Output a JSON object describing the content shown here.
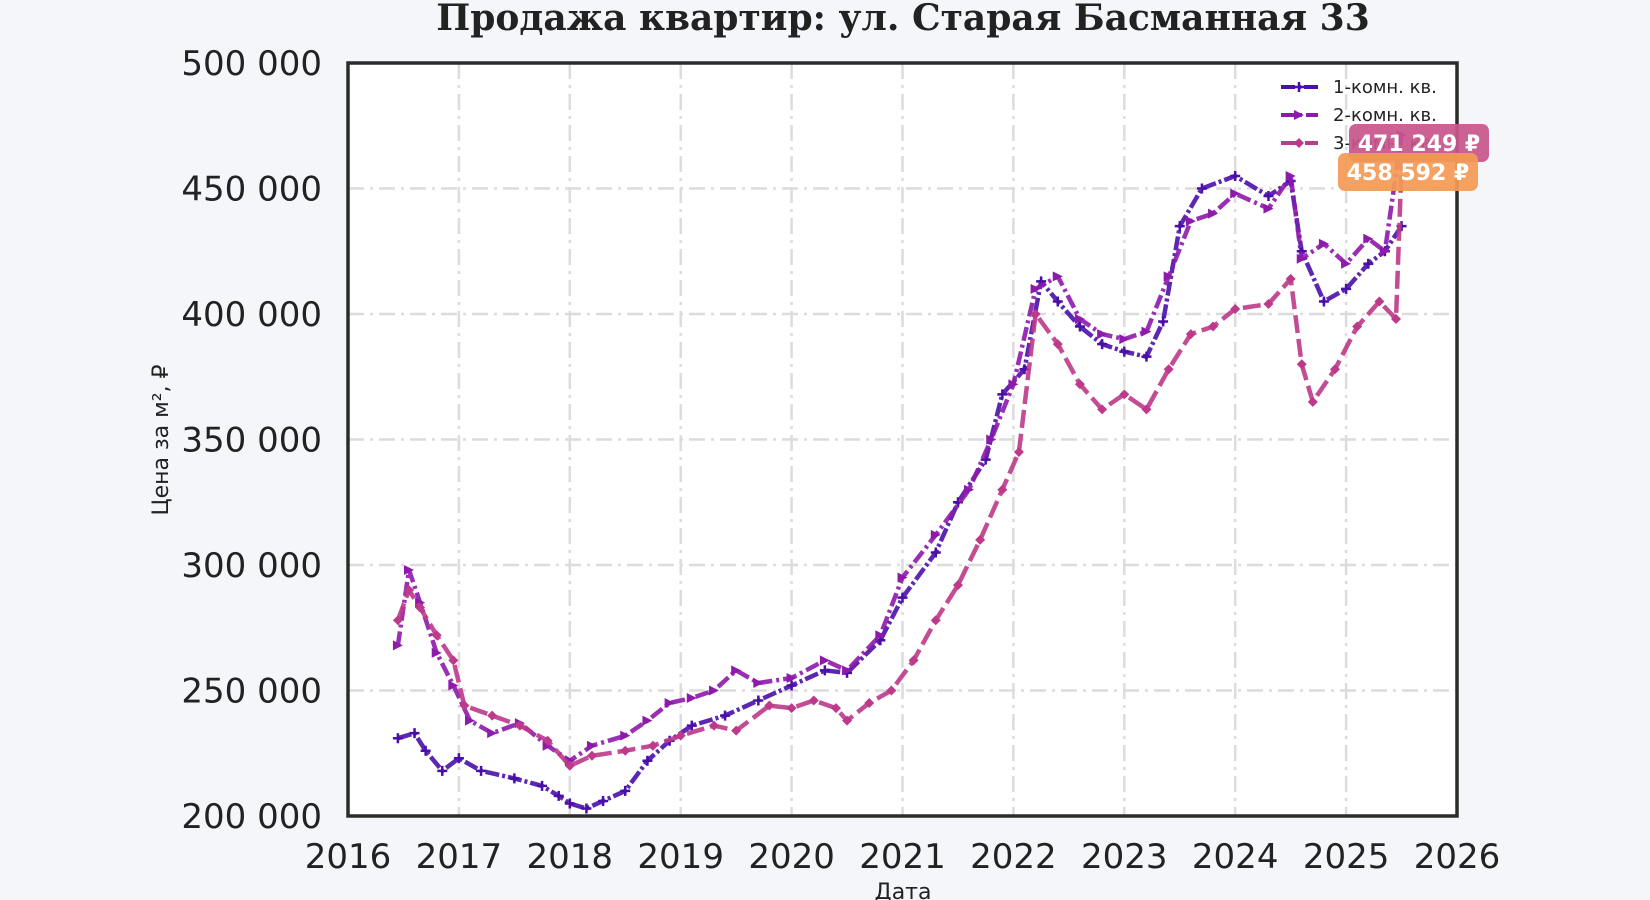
{
  "chart_data": {
    "type": "line",
    "title": "Продажа квартир: ул. Старая Басманная 33",
    "xlabel": "Дата",
    "ylabel": "Цена за м², ₽",
    "xlim": [
      2016,
      2026
    ],
    "ylim": [
      200000,
      500000
    ],
    "x_ticks": [
      2016,
      2017,
      2018,
      2019,
      2020,
      2021,
      2022,
      2023,
      2024,
      2025,
      2026
    ],
    "x_tick_labels": [
      "2016",
      "2017",
      "2018",
      "2019",
      "2020",
      "2021",
      "2022",
      "2023",
      "2024",
      "2025",
      "2026"
    ],
    "y_ticks": [
      200000,
      250000,
      300000,
      350000,
      400000,
      450000,
      500000
    ],
    "y_tick_labels": [
      "200 000",
      "250 000",
      "300 000",
      "350 000",
      "400 000",
      "450 000",
      "500 000"
    ],
    "grid": true,
    "legend_position": "top-right",
    "series": [
      {
        "name": "1-комн. кв.",
        "color": "#4a0fa8",
        "marker": "plus",
        "dash": "14 3 3 3",
        "last_value_label": "",
        "x": [
          2016.45,
          2016.6,
          2016.7,
          2016.85,
          2017.0,
          2017.2,
          2017.5,
          2017.75,
          2017.9,
          2018.0,
          2018.15,
          2018.3,
          2018.5,
          2018.7,
          2018.9,
          2019.1,
          2019.4,
          2019.7,
          2020.0,
          2020.3,
          2020.5,
          2020.8,
          2021.0,
          2021.3,
          2021.5,
          2021.75,
          2021.9,
          2022.1,
          2022.25,
          2022.4,
          2022.6,
          2022.8,
          2023.0,
          2023.2,
          2023.35,
          2023.5,
          2023.7,
          2024.0,
          2024.3,
          2024.5,
          2024.6,
          2024.8,
          2025.0,
          2025.2,
          2025.35,
          2025.5
        ],
        "y": [
          231000,
          233000,
          226000,
          218000,
          223000,
          218000,
          215000,
          212000,
          208000,
          205000,
          203000,
          206000,
          210000,
          222000,
          230000,
          236000,
          240000,
          246000,
          252000,
          258000,
          257000,
          270000,
          287000,
          305000,
          325000,
          342000,
          368000,
          378000,
          413000,
          405000,
          395000,
          388000,
          385000,
          383000,
          397000,
          435000,
          450000,
          455000,
          447000,
          453000,
          425000,
          405000,
          410000,
          420000,
          425000,
          435000
        ]
      },
      {
        "name": "2-комн. кв.",
        "color": "#8e1aab",
        "marker": "triangle-right",
        "dash": "14 4 3 4",
        "last_value_label": "471 249 ₽",
        "x": [
          2016.45,
          2016.55,
          2016.65,
          2016.8,
          2016.95,
          2017.1,
          2017.3,
          2017.55,
          2017.8,
          2018.0,
          2018.2,
          2018.5,
          2018.7,
          2018.9,
          2019.1,
          2019.3,
          2019.5,
          2019.7,
          2020.0,
          2020.3,
          2020.5,
          2020.8,
          2021.0,
          2021.3,
          2021.6,
          2021.8,
          2022.0,
          2022.2,
          2022.4,
          2022.6,
          2022.8,
          2023.0,
          2023.2,
          2023.4,
          2023.6,
          2023.8,
          2024.0,
          2024.3,
          2024.5,
          2024.6,
          2024.8,
          2025.0,
          2025.2,
          2025.35,
          2025.5
        ],
        "y": [
          268000,
          298000,
          285000,
          265000,
          252000,
          238000,
          233000,
          237000,
          228000,
          222000,
          228000,
          232000,
          238000,
          245000,
          247000,
          250000,
          258000,
          253000,
          255000,
          262000,
          258000,
          272000,
          295000,
          312000,
          330000,
          350000,
          372000,
          410000,
          415000,
          398000,
          392000,
          390000,
          393000,
          415000,
          437000,
          440000,
          448000,
          442000,
          455000,
          422000,
          428000,
          420000,
          430000,
          425000,
          471249
        ]
      },
      {
        "name": "3-комн. кв.",
        "color": "#bd3a8a",
        "marker": "diamond",
        "dash": "18 6",
        "last_value_label": "458 592 ₽",
        "x": [
          2016.45,
          2016.55,
          2016.65,
          2016.8,
          2016.95,
          2017.05,
          2017.3,
          2017.55,
          2017.8,
          2018.0,
          2018.2,
          2018.5,
          2018.75,
          2019.0,
          2019.3,
          2019.5,
          2019.8,
          2020.0,
          2020.2,
          2020.4,
          2020.5,
          2020.7,
          2020.9,
          2021.1,
          2021.3,
          2021.5,
          2021.7,
          2021.9,
          2022.05,
          2022.2,
          2022.4,
          2022.6,
          2022.8,
          2023.0,
          2023.2,
          2023.4,
          2023.6,
          2023.8,
          2024.0,
          2024.3,
          2024.5,
          2024.6,
          2024.7,
          2024.9,
          2025.1,
          2025.3,
          2025.45,
          2025.5
        ],
        "y": [
          278000,
          290000,
          283000,
          272000,
          262000,
          244000,
          240000,
          236000,
          230000,
          220000,
          224000,
          226000,
          228000,
          232000,
          236000,
          234000,
          244000,
          243000,
          246000,
          243000,
          238000,
          245000,
          250000,
          262000,
          278000,
          292000,
          310000,
          330000,
          345000,
          400000,
          388000,
          372000,
          362000,
          368000,
          362000,
          378000,
          392000,
          395000,
          402000,
          404000,
          414000,
          380000,
          365000,
          378000,
          395000,
          405000,
          398000,
          458592
        ]
      }
    ]
  }
}
